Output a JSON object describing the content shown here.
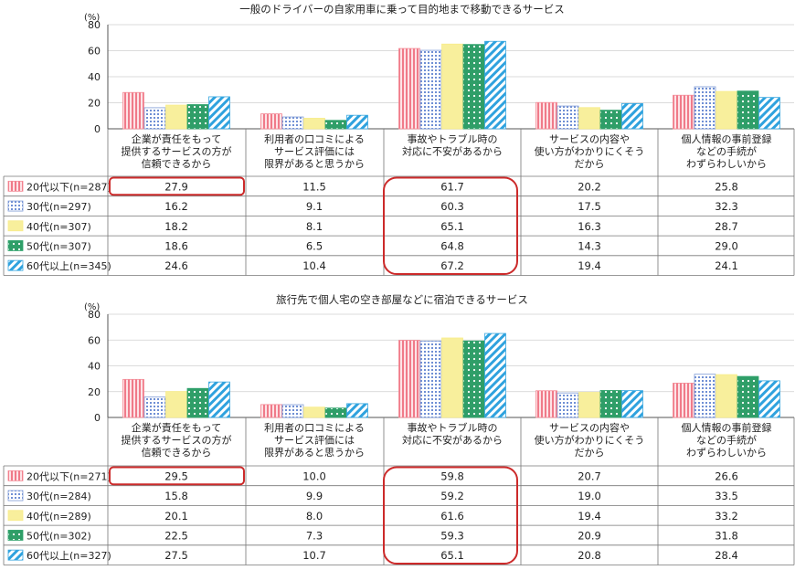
{
  "chart_data": [
    {
      "type": "bar",
      "title": "一般のドライバーの自家用車に乗って目的地まで移動できるサービス",
      "ylabel": "(%)",
      "ylim": [
        0,
        80
      ],
      "yticks": [
        0,
        20,
        40,
        60,
        80
      ],
      "categories": [
        "企業が責任をもって\n提供するサービスの方が\n信頼できるから",
        "利用者の口コミによる\nサービス評価には\n限界があると思うから",
        "事故やトラブル時の\n対応に不安があるから",
        "サービスの内容や\n使い方がわかりにくそう\nだから",
        "個人情報の事前登録\nなどの手続が\nわずらわしいから"
      ],
      "series": [
        {
          "name": "20代以下(n=287)",
          "values": [
            "27.9",
            "11.5",
            "61.7",
            "20.2",
            "25.8"
          ]
        },
        {
          "name": "30代(n=297)",
          "values": [
            "16.2",
            "9.1",
            "60.3",
            "17.5",
            "32.3"
          ]
        },
        {
          "name": "40代(n=307)",
          "values": [
            "18.2",
            "8.1",
            "65.1",
            "16.3",
            "28.7"
          ]
        },
        {
          "name": "50代(n=307)",
          "values": [
            "18.6",
            "6.5",
            "64.8",
            "14.3",
            "29.0"
          ]
        },
        {
          "name": "60代以上(n=345)",
          "values": [
            "24.6",
            "10.4",
            "67.2",
            "19.4",
            "24.1"
          ]
        }
      ]
    },
    {
      "type": "bar",
      "title": "旅行先で個人宅の空き部屋などに宿泊できるサービス",
      "ylabel": "(%)",
      "ylim": [
        0,
        80
      ],
      "yticks": [
        0,
        20,
        40,
        60,
        80
      ],
      "categories": [
        "企業が責任をもって\n提供するサービスの方が\n信頼できるから",
        "利用者の口コミによる\nサービス評価には\n限界があると思うから",
        "事故やトラブル時の\n対応に不安があるから",
        "サービスの内容や\n使い方がわかりにくそう\nだから",
        "個人情報の事前登録\nなどの手続が\nわずらわしいから"
      ],
      "series": [
        {
          "name": "20代以下(n=271)",
          "values": [
            "29.5",
            "10.0",
            "59.8",
            "20.7",
            "26.6"
          ]
        },
        {
          "name": "30代(n=284)",
          "values": [
            "15.8",
            "9.9",
            "59.2",
            "19.0",
            "33.5"
          ]
        },
        {
          "name": "40代(n=289)",
          "values": [
            "20.1",
            "8.0",
            "61.6",
            "19.4",
            "33.2"
          ]
        },
        {
          "name": "50代(n=302)",
          "values": [
            "22.5",
            "7.3",
            "59.3",
            "20.9",
            "31.8"
          ]
        },
        {
          "name": "60代以上(n=327)",
          "values": [
            "27.5",
            "10.7",
            "65.1",
            "20.8",
            "28.4"
          ]
        }
      ]
    }
  ],
  "series_colors": [
    "#f48a96",
    "#7f9bd6",
    "#f7ec8a",
    "#2ea36b",
    "#35a6df"
  ],
  "series_patterns": [
    "vertical-stripes",
    "grid-dots",
    "solid",
    "dots",
    "diagonal-stripes"
  ],
  "highlight_color": "#cc2a2a"
}
